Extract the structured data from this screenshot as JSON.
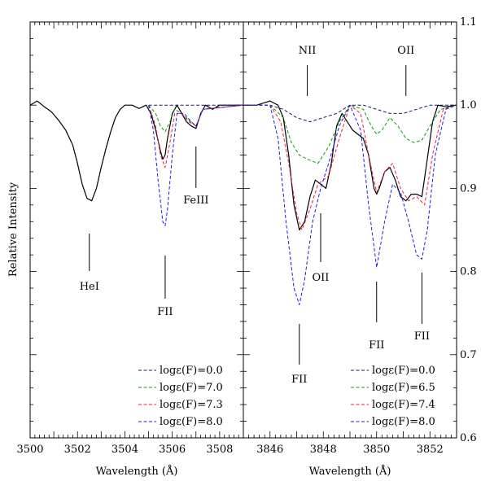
{
  "chart_data": [
    {
      "type": "line",
      "panel": "left",
      "xlabel": "Wavelength (Å)",
      "ylabel": "Relative Intensity",
      "xlim": [
        3500,
        3509
      ],
      "ylim": [
        0.6,
        1.1
      ],
      "x_ticks": [
        3500,
        3502,
        3504,
        3506,
        3508
      ],
      "line_annotations": [
        {
          "label": "HeI",
          "x": 3502.5
        },
        {
          "label": "FII",
          "x": 3505.7
        },
        {
          "label": "FeIII",
          "x": 3507.0
        }
      ],
      "legend": [
        "logε(F)=0.0",
        "logε(F)=7.0",
        "logε(F)=7.3",
        "logε(F)=8.0"
      ],
      "series": [
        {
          "name": "observed",
          "color": "#000000",
          "style": "solid",
          "x": [
            3500.0,
            3500.3,
            3500.6,
            3500.9,
            3501.2,
            3501.5,
            3501.8,
            3502.0,
            3502.2,
            3502.4,
            3502.6,
            3502.8,
            3503.0,
            3503.2,
            3503.4,
            3503.6,
            3503.8,
            3504.0,
            3504.3,
            3504.6,
            3504.9,
            3505.1,
            3505.3,
            3505.5,
            3505.6,
            3505.7,
            3505.8,
            3506.0,
            3506.2,
            3506.4,
            3506.6,
            3506.8,
            3507.0,
            3507.2,
            3507.4,
            3507.7,
            3508.0,
            3508.3,
            3508.6,
            3509.0
          ],
          "y": [
            1.0,
            1.005,
            0.998,
            0.992,
            0.982,
            0.97,
            0.952,
            0.93,
            0.905,
            0.888,
            0.885,
            0.9,
            0.925,
            0.948,
            0.968,
            0.985,
            0.995,
            1.0,
            1.0,
            0.996,
            1.0,
            0.99,
            0.97,
            0.945,
            0.935,
            0.94,
            0.96,
            0.99,
            1.0,
            0.99,
            0.98,
            0.975,
            0.972,
            0.99,
            1.0,
            0.995,
            1.0,
            1.0,
            1.0,
            1.0
          ]
        },
        {
          "name": "logε(F)=0.0",
          "color": "#1a1a5e",
          "style": "dashed",
          "x": [
            3505.0,
            3509.0
          ],
          "y": [
            1.0,
            1.0
          ]
        },
        {
          "name": "logε(F)=7.0",
          "color": "#0a9a0a",
          "style": "dashed",
          "x": [
            3505.0,
            3505.3,
            3505.5,
            3505.7,
            3505.9,
            3506.1,
            3506.4,
            3506.7,
            3507.0,
            3507.3,
            3509.0
          ],
          "y": [
            1.0,
            0.99,
            0.975,
            0.968,
            0.98,
            0.995,
            0.99,
            0.982,
            0.975,
            0.995,
            1.0
          ]
        },
        {
          "name": "logε(F)=7.3",
          "color": "#ee1a3a",
          "style": "dashed",
          "x": [
            3505.0,
            3505.3,
            3505.5,
            3505.7,
            3505.9,
            3506.1,
            3506.4,
            3506.7,
            3507.0,
            3507.3,
            3509.0
          ],
          "y": [
            1.0,
            0.975,
            0.94,
            0.925,
            0.955,
            0.99,
            0.99,
            0.98,
            0.975,
            0.995,
            1.0
          ]
        },
        {
          "name": "logε(F)=8.0",
          "color": "#1a1aee",
          "style": "dashed",
          "x": [
            3505.0,
            3505.2,
            3505.4,
            3505.6,
            3505.7,
            3505.8,
            3506.0,
            3506.2,
            3506.5,
            3506.8,
            3507.0,
            3507.3,
            3509.0
          ],
          "y": [
            1.0,
            0.97,
            0.91,
            0.86,
            0.855,
            0.875,
            0.94,
            0.99,
            0.99,
            0.98,
            0.975,
            0.995,
            1.0
          ]
        }
      ]
    },
    {
      "type": "line",
      "panel": "right",
      "xlabel": "Wavelength (Å)",
      "xlim": [
        3845,
        3853
      ],
      "ylim": [
        0.6,
        1.1
      ],
      "x_ticks": [
        3846,
        3848,
        3850,
        3852
      ],
      "y_ticks": [
        0.6,
        0.7,
        0.8,
        0.9,
        1.0,
        1.1
      ],
      "y_tick_labels": [
        "0.6",
        "0.7",
        "0.8",
        "0.9",
        "1.0",
        "1.1"
      ],
      "line_annotations": [
        {
          "label": "NII",
          "x": 3847.4
        },
        {
          "label": "OII",
          "x": 3851.1
        },
        {
          "label": "OII",
          "x": 3847.9
        },
        {
          "label": "FII",
          "x": 3847.1
        },
        {
          "label": "FII",
          "x": 3850.0
        },
        {
          "label": "FII",
          "x": 3851.7
        }
      ],
      "legend": [
        "logε(F)=0.0",
        "logε(F)=6.5",
        "logε(F)=7.4",
        "logε(F)=8.0"
      ],
      "series": [
        {
          "name": "observed",
          "color": "#000000",
          "style": "solid",
          "x": [
            3845.0,
            3845.5,
            3846.0,
            3846.3,
            3846.5,
            3846.7,
            3846.9,
            3847.1,
            3847.3,
            3847.5,
            3847.7,
            3847.9,
            3848.1,
            3848.3,
            3848.5,
            3848.7,
            3848.9,
            3849.1,
            3849.3,
            3849.5,
            3849.7,
            3849.9,
            3850.0,
            3850.1,
            3850.3,
            3850.5,
            3850.7,
            3850.9,
            3851.1,
            3851.3,
            3851.5,
            3851.7,
            3851.9,
            3852.1,
            3852.3,
            3852.6,
            3853.0
          ],
          "y": [
            1.0,
            1.0,
            1.005,
            1.0,
            0.985,
            0.94,
            0.88,
            0.85,
            0.86,
            0.89,
            0.91,
            0.905,
            0.9,
            0.93,
            0.975,
            0.99,
            0.98,
            0.97,
            0.965,
            0.96,
            0.94,
            0.9,
            0.893,
            0.9,
            0.92,
            0.925,
            0.91,
            0.89,
            0.885,
            0.893,
            0.893,
            0.89,
            0.935,
            0.98,
            1.0,
            0.998,
            1.0
          ]
        },
        {
          "name": "logε(F)=0.0",
          "color": "#1a1a5e",
          "style": "dashed",
          "x": [
            3845.0,
            3846.0,
            3846.5,
            3847.0,
            3847.5,
            3848.0,
            3848.5,
            3849.0,
            3849.5,
            3850.0,
            3850.5,
            3851.0,
            3851.5,
            3852.0,
            3853.0
          ],
          "y": [
            1.0,
            1.0,
            0.995,
            0.985,
            0.98,
            0.985,
            0.99,
            1.0,
            1.0,
            0.995,
            0.99,
            0.99,
            0.995,
            1.0,
            1.0
          ]
        },
        {
          "name": "logε(F)=6.5",
          "color": "#0a9a0a",
          "style": "dashed",
          "x": [
            3845.0,
            3846.0,
            3846.5,
            3846.8,
            3847.1,
            3847.4,
            3847.8,
            3848.2,
            3848.6,
            3849.0,
            3849.5,
            3849.8,
            3850.0,
            3850.2,
            3850.5,
            3850.8,
            3851.1,
            3851.4,
            3851.7,
            3852.0,
            3852.4,
            3853.0
          ],
          "y": [
            1.0,
            1.0,
            0.985,
            0.955,
            0.94,
            0.935,
            0.93,
            0.95,
            0.98,
            1.0,
            0.995,
            0.975,
            0.965,
            0.97,
            0.985,
            0.975,
            0.96,
            0.955,
            0.958,
            0.975,
            0.995,
            1.0
          ]
        },
        {
          "name": "logε(F)=7.4",
          "color": "#ee1a3a",
          "style": "dashed",
          "x": [
            3845.0,
            3846.0,
            3846.4,
            3846.7,
            3847.0,
            3847.2,
            3847.5,
            3847.8,
            3848.2,
            3848.6,
            3849.0,
            3849.4,
            3849.7,
            3850.0,
            3850.3,
            3850.6,
            3850.9,
            3851.2,
            3851.5,
            3851.8,
            3852.1,
            3852.5,
            3853.0
          ],
          "y": [
            1.0,
            1.0,
            0.98,
            0.93,
            0.87,
            0.85,
            0.875,
            0.905,
            0.915,
            0.96,
            1.0,
            0.99,
            0.94,
            0.895,
            0.92,
            0.93,
            0.9,
            0.885,
            0.89,
            0.88,
            0.94,
            0.995,
            1.0
          ]
        },
        {
          "name": "logε(F)=8.0",
          "color": "#1a1aee",
          "style": "dashed",
          "x": [
            3845.0,
            3846.0,
            3846.3,
            3846.6,
            3846.9,
            3847.1,
            3847.3,
            3847.6,
            3847.9,
            3848.2,
            3848.6,
            3849.0,
            3849.4,
            3849.7,
            3850.0,
            3850.3,
            3850.6,
            3850.9,
            3851.2,
            3851.5,
            3851.7,
            3851.9,
            3852.2,
            3852.6,
            3853.0
          ],
          "y": [
            1.0,
            1.0,
            0.96,
            0.86,
            0.78,
            0.76,
            0.79,
            0.86,
            0.9,
            0.93,
            0.975,
            1.0,
            0.97,
            0.88,
            0.805,
            0.86,
            0.905,
            0.895,
            0.86,
            0.82,
            0.815,
            0.85,
            0.94,
            0.995,
            1.0
          ]
        }
      ]
    }
  ]
}
